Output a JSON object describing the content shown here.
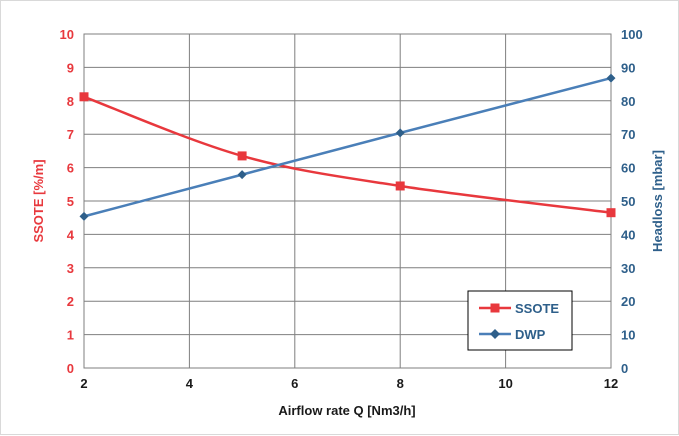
{
  "chart_data": {
    "type": "line",
    "title": "",
    "xlabel": "Airflow rate Q [Nm3/h]",
    "ylabel_left": "SSOTE [%/m]",
    "ylabel_right": "Headloss [mbar]",
    "xlim": [
      2,
      12
    ],
    "ylim_left": [
      0,
      10
    ],
    "ylim_right": [
      0,
      100
    ],
    "x_ticks": [
      "2",
      "4",
      "6",
      "8",
      "10",
      "12"
    ],
    "y_left_ticks": [
      "0",
      "1",
      "2",
      "3",
      "4",
      "5",
      "6",
      "7",
      "8",
      "9",
      "10"
    ],
    "y_right_ticks": [
      "0",
      "10",
      "20",
      "30",
      "40",
      "50",
      "60",
      "70",
      "80",
      "90",
      "100"
    ],
    "grid": true,
    "legend_position": "bottom-right",
    "series": [
      {
        "name": "SSOTE",
        "axis": "left",
        "color": "#e8383d",
        "marker": "square",
        "x": [
          2,
          5,
          8,
          12
        ],
        "y": [
          8.12,
          6.35,
          5.45,
          4.65
        ]
      },
      {
        "name": "DWP",
        "axis": "right",
        "color": "#4a7fb8",
        "marker": "diamond",
        "x": [
          2,
          5,
          8,
          12
        ],
        "y": [
          45.4,
          57.9,
          70.4,
          86.8
        ]
      }
    ]
  }
}
